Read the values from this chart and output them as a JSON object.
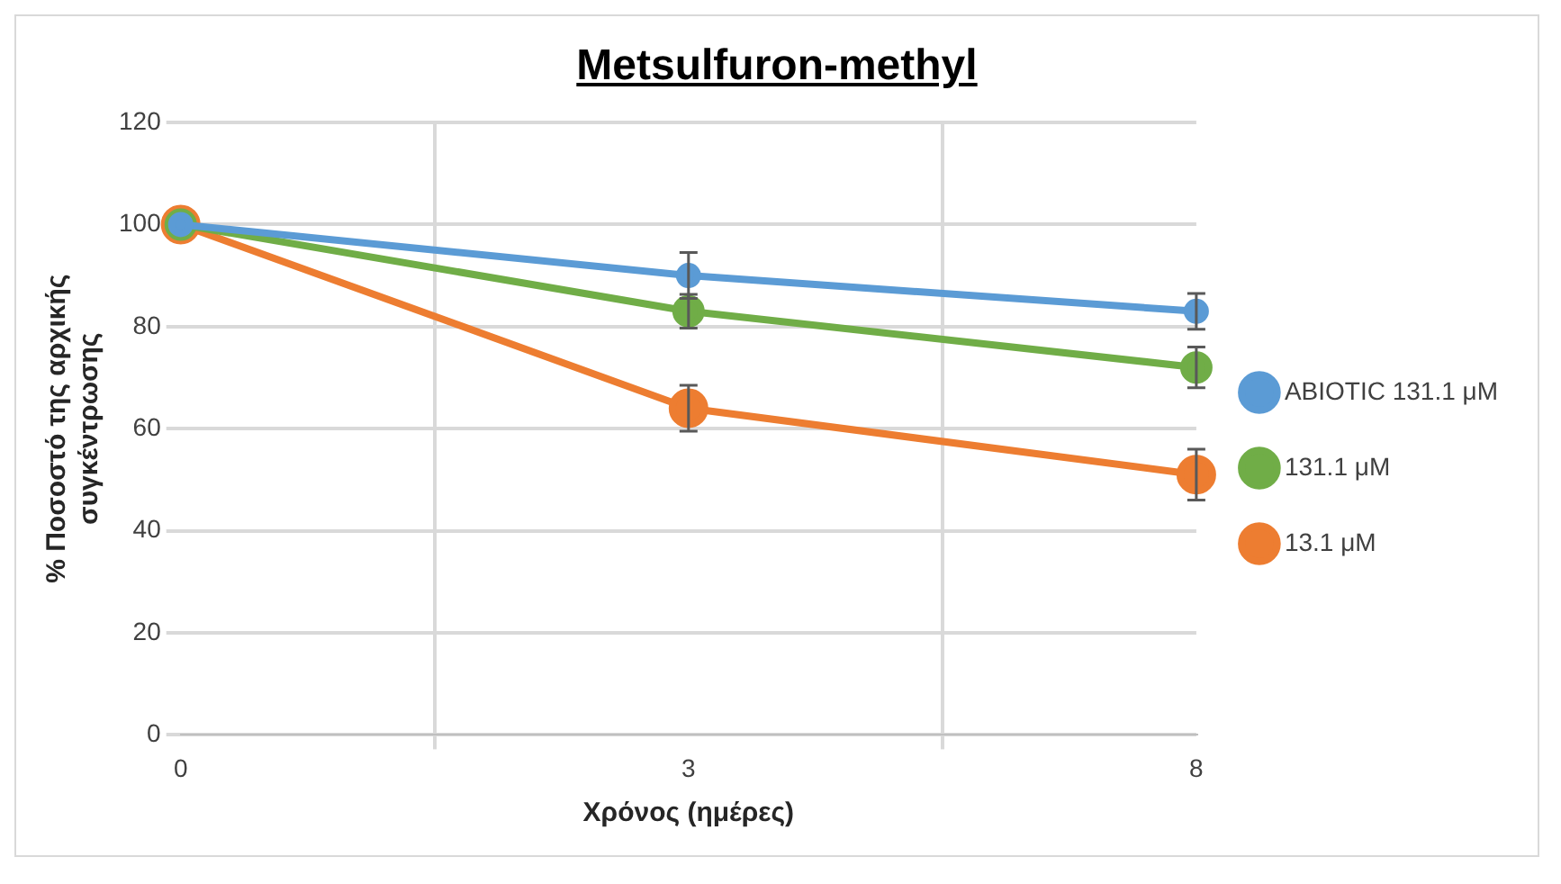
{
  "chart_data": {
    "type": "line",
    "title": "Metsulfuron-methyl",
    "xlabel": "Χρόνος (ημέρες)",
    "ylabel": "% Ποσοστό της αρχικής συγκέντρωσης",
    "categories": [
      "0",
      "3",
      "8"
    ],
    "ylim": [
      0,
      120
    ],
    "yticks": [
      0,
      20,
      40,
      60,
      80,
      100,
      120
    ],
    "grid": true,
    "legend": "right",
    "marker": "circle",
    "line_style": "solid",
    "series": [
      {
        "name": "ABIOTIC 131.1 μM",
        "color": "#5b9bd5",
        "values": [
          100,
          90,
          83
        ],
        "errors": [
          null,
          4.5,
          3.5
        ]
      },
      {
        "name": "131.1 μM",
        "color": "#70ad47",
        "values": [
          100,
          83,
          72
        ],
        "errors": [
          null,
          3.3,
          4
        ]
      },
      {
        "name": "13.1 μM",
        "color": "#ed7d31",
        "values": [
          100,
          64,
          51
        ],
        "errors": [
          null,
          4.5,
          5
        ]
      }
    ]
  }
}
